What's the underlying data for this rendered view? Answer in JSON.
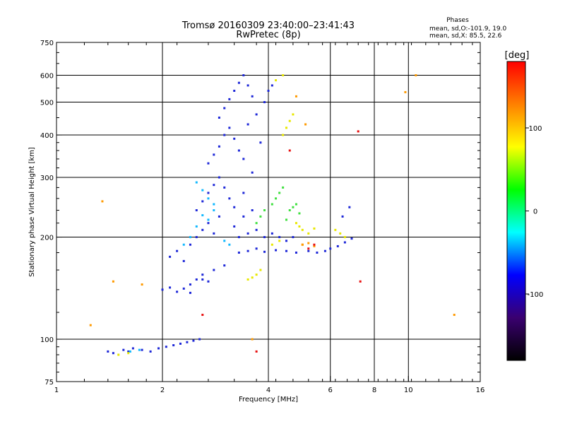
{
  "chart_data": {
    "type": "scatter",
    "title": "Tromsø 20160309 23:40:00–23:41:43",
    "subtitle": "RwPretec (8p)",
    "phases": {
      "heading": "Phases",
      "line_o": "mean, sd,O:-101.9, 19.0",
      "line_x": "mean, sd,X:  85.5, 22.6"
    },
    "xlabel": "Frequency [MHz]",
    "ylabel": "Stationary phase Virtual Height [km]",
    "x_scale": "log",
    "y_scale": "log",
    "xlim": [
      1,
      16
    ],
    "ylim": [
      75,
      750
    ],
    "x_ticks": [
      1,
      2,
      4,
      6,
      8,
      10,
      16
    ],
    "x_tick_labels": [
      "1",
      "2",
      "4",
      "6",
      "8",
      "10",
      "16"
    ],
    "x_grid": [
      2,
      4,
      6,
      8,
      10
    ],
    "y_ticks": [
      75,
      100,
      200,
      300,
      400,
      500,
      600,
      750
    ],
    "y_tick_labels": [
      "75",
      "100",
      "200",
      "300",
      "400",
      "500",
      "600",
      "750"
    ],
    "y_grid": [
      100,
      200,
      300,
      400,
      500,
      600
    ],
    "grid": true,
    "colorbar": {
      "label": "[deg]",
      "range": [
        -180,
        180
      ],
      "ticks": [
        100,
        0,
        -100
      ],
      "tick_labels": [
        "100",
        "0",
        "-100"
      ],
      "colors": [
        "#000000",
        "#3a0070",
        "#0000ff",
        "#00ffff",
        "#00ff00",
        "#ffff00",
        "#ff8000",
        "#ff0000"
      ]
    },
    "series": [
      {
        "points": [
          [
            1.4,
            92
          ],
          [
            1.45,
            91
          ],
          [
            1.55,
            93
          ],
          [
            1.6,
            92
          ],
          [
            1.65,
            94
          ],
          [
            1.75,
            93
          ],
          [
            1.85,
            92
          ],
          [
            1.95,
            94
          ],
          [
            2.05,
            95
          ],
          [
            2.15,
            96
          ],
          [
            2.25,
            97
          ],
          [
            2.35,
            98
          ],
          [
            2.45,
            99
          ],
          [
            2.55,
            100
          ],
          [
            2.0,
            140
          ],
          [
            2.1,
            142
          ],
          [
            2.2,
            138
          ],
          [
            2.3,
            141
          ],
          [
            2.4,
            145
          ],
          [
            2.5,
            150
          ],
          [
            2.6,
            155
          ],
          [
            2.7,
            148
          ],
          [
            2.1,
            175
          ],
          [
            2.2,
            182
          ],
          [
            2.3,
            170
          ],
          [
            2.4,
            190
          ],
          [
            2.5,
            200
          ],
          [
            2.6,
            210
          ],
          [
            2.7,
            220
          ],
          [
            2.8,
            205
          ],
          [
            2.5,
            240
          ],
          [
            2.6,
            255
          ],
          [
            2.7,
            270
          ],
          [
            2.8,
            285
          ],
          [
            2.9,
            300
          ],
          [
            3.0,
            280
          ],
          [
            3.1,
            260
          ],
          [
            3.2,
            245
          ],
          [
            2.7,
            330
          ],
          [
            2.8,
            350
          ],
          [
            2.9,
            370
          ],
          [
            3.0,
            400
          ],
          [
            3.1,
            420
          ],
          [
            3.2,
            390
          ],
          [
            3.3,
            360
          ],
          [
            3.4,
            340
          ],
          [
            2.9,
            450
          ],
          [
            3.0,
            480
          ],
          [
            3.1,
            510
          ],
          [
            3.2,
            540
          ],
          [
            3.3,
            570
          ],
          [
            3.4,
            600
          ],
          [
            3.5,
            560
          ],
          [
            3.6,
            520
          ],
          [
            3.3,
            200
          ],
          [
            3.5,
            205
          ],
          [
            3.7,
            210
          ],
          [
            3.9,
            200
          ],
          [
            4.1,
            205
          ],
          [
            4.3,
            200
          ],
          [
            4.5,
            195
          ],
          [
            4.7,
            200
          ],
          [
            3.3,
            180
          ],
          [
            3.5,
            182
          ],
          [
            3.7,
            185
          ],
          [
            3.9,
            181
          ],
          [
            4.2,
            183
          ],
          [
            4.5,
            182
          ],
          [
            4.8,
            180
          ],
          [
            5.2,
            182
          ],
          [
            3.5,
            430
          ],
          [
            3.7,
            460
          ],
          [
            3.9,
            500
          ],
          [
            4.0,
            540
          ],
          [
            4.1,
            560
          ],
          [
            3.8,
            380
          ],
          [
            3.6,
            310
          ],
          [
            3.4,
            270
          ],
          [
            5.5,
            180
          ],
          [
            5.8,
            182
          ],
          [
            6.0,
            185
          ],
          [
            6.3,
            188
          ],
          [
            6.6,
            193
          ],
          [
            6.9,
            198
          ],
          [
            6.5,
            230
          ],
          [
            6.8,
            245
          ],
          [
            3.0,
            165
          ],
          [
            2.8,
            160
          ],
          [
            2.6,
            150
          ],
          [
            2.4,
            137
          ],
          [
            2.9,
            230
          ],
          [
            3.2,
            215
          ],
          [
            3.4,
            230
          ],
          [
            3.6,
            240
          ]
        ],
        "color": "#1e28d8"
      },
      {
        "points": [
          [
            2.5,
            290
          ],
          [
            2.6,
            275
          ],
          [
            2.7,
            260
          ],
          [
            2.8,
            250
          ],
          [
            2.6,
            232
          ],
          [
            2.7,
            225
          ],
          [
            2.5,
            215
          ],
          [
            2.8,
            240
          ],
          [
            1.62,
            92
          ],
          [
            1.72,
            93
          ],
          [
            2.3,
            190
          ],
          [
            2.4,
            200
          ],
          [
            3.0,
            195
          ],
          [
            3.1,
            190
          ]
        ],
        "color": "#10b8ff"
      },
      {
        "points": [
          [
            3.7,
            220
          ],
          [
            3.8,
            230
          ],
          [
            3.9,
            240
          ],
          [
            4.1,
            250
          ],
          [
            4.2,
            260
          ],
          [
            4.3,
            270
          ],
          [
            4.4,
            280
          ],
          [
            4.6,
            240
          ],
          [
            4.7,
            245
          ],
          [
            4.8,
            250
          ],
          [
            4.9,
            235
          ],
          [
            4.5,
            225
          ]
        ],
        "color": "#40e040"
      },
      {
        "points": [
          [
            4.4,
            400
          ],
          [
            4.5,
            420
          ],
          [
            4.6,
            440
          ],
          [
            4.7,
            460
          ],
          [
            4.8,
            220
          ],
          [
            4.9,
            215
          ],
          [
            5.0,
            210
          ],
          [
            5.2,
            205
          ],
          [
            5.4,
            212
          ],
          [
            6.2,
            210
          ],
          [
            6.4,
            205
          ],
          [
            6.6,
            200
          ],
          [
            3.5,
            150
          ],
          [
            3.6,
            152
          ],
          [
            3.7,
            155
          ],
          [
            3.8,
            160
          ],
          [
            4.1,
            190
          ],
          [
            4.3,
            195
          ],
          [
            1.5,
            90
          ],
          [
            1.6,
            91
          ],
          [
            4.2,
            580
          ],
          [
            4.4,
            600
          ]
        ],
        "color": "#e8e800"
      },
      {
        "points": [
          [
            1.25,
            110
          ],
          [
            1.35,
            255
          ],
          [
            1.45,
            148
          ],
          [
            1.75,
            145
          ],
          [
            5.0,
            190
          ],
          [
            5.2,
            192
          ],
          [
            5.4,
            188
          ],
          [
            4.8,
            520
          ],
          [
            9.8,
            535
          ],
          [
            10.5,
            600
          ],
          [
            13.5,
            118
          ],
          [
            3.6,
            100
          ],
          [
            5.1,
            430
          ],
          [
            5.0,
            190
          ]
        ],
        "color": "#ff9a00"
      },
      {
        "points": [
          [
            7.2,
            410
          ],
          [
            7.3,
            148
          ],
          [
            5.2,
            185
          ],
          [
            5.4,
            190
          ],
          [
            4.6,
            360
          ],
          [
            2.6,
            118
          ],
          [
            3.7,
            92
          ]
        ],
        "color": "#e81010"
      }
    ]
  }
}
